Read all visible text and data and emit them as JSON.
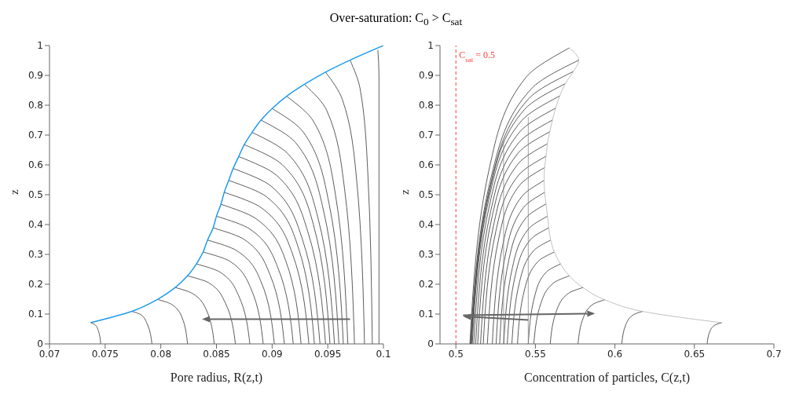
{
  "chart_data": [
    {
      "type": "line",
      "title": "Over-saturation: C$_{0}$ > C$_{sat}$",
      "xlabel": "Pore radius, R(z,t)",
      "ylabel": "z",
      "xlim": [
        0.07,
        0.1
      ],
      "ylim": [
        0,
        1
      ],
      "xticks": [
        0.07,
        0.075,
        0.08,
        0.085,
        0.09,
        0.095,
        0.1
      ],
      "yticks": [
        0,
        0.1,
        0.2,
        0.3,
        0.4,
        0.5,
        0.6,
        0.7,
        0.8,
        0.9,
        1
      ],
      "series": [
        {
          "color": "#333333",
          "x": [
            0.0746,
            0.0744,
            0.0741,
            0.0737
          ],
          "values": [
            0,
            0.043,
            0.064,
            0.071
          ]
        },
        {
          "color": "#333333",
          "x": [
            0.0792,
            0.0788,
            0.0782,
            0.0774
          ],
          "values": [
            0,
            0.065,
            0.098,
            0.109
          ]
        },
        {
          "color": "#333333",
          "x": [
            0.0824,
            0.0819,
            0.0809,
            0.0797
          ],
          "values": [
            0,
            0.089,
            0.134,
            0.149
          ]
        },
        {
          "color": "#333333",
          "x": [
            0.0848,
            0.0841,
            0.0828,
            0.0813
          ],
          "values": [
            0,
            0.113,
            0.17,
            0.189
          ]
        },
        {
          "color": "#333333",
          "x": [
            0.0867,
            0.0858,
            0.0843,
            0.0824
          ],
          "values": [
            0,
            0.137,
            0.205,
            0.228
          ]
        },
        {
          "color": "#333333",
          "x": [
            0.088,
            0.087,
            0.0853,
            0.0832
          ],
          "values": [
            0,
            0.161,
            0.241,
            0.268
          ]
        },
        {
          "color": "#333333",
          "x": [
            0.0892,
            0.0881,
            0.0862,
            0.0838
          ],
          "values": [
            0,
            0.185,
            0.277,
            0.308
          ]
        },
        {
          "color": "#333333",
          "x": [
            0.0902,
            0.089,
            0.0868,
            0.0842
          ],
          "values": [
            0,
            0.209,
            0.313,
            0.348
          ]
        },
        {
          "color": "#333333",
          "x": [
            0.0911,
            0.0898,
            0.0875,
            0.0847
          ],
          "values": [
            0,
            0.233,
            0.35,
            0.389
          ]
        },
        {
          "color": "#333333",
          "x": [
            0.0919,
            0.0905,
            0.088,
            0.085
          ],
          "values": [
            0,
            0.257,
            0.385,
            0.428
          ]
        },
        {
          "color": "#333333",
          "x": [
            0.0926,
            0.0912,
            0.0885,
            0.0854
          ],
          "values": [
            0,
            0.281,
            0.421,
            0.468
          ]
        },
        {
          "color": "#333333",
          "x": [
            0.0933,
            0.0918,
            0.089,
            0.0857
          ],
          "values": [
            0,
            0.305,
            0.457,
            0.508
          ]
        },
        {
          "color": "#333333",
          "x": [
            0.0938,
            0.0923,
            0.0895,
            0.0861
          ],
          "values": [
            0,
            0.329,
            0.493,
            0.548
          ]
        },
        {
          "color": "#333333",
          "x": [
            0.0943,
            0.0927,
            0.0899,
            0.0865
          ],
          "values": [
            0,
            0.353,
            0.529,
            0.588
          ]
        },
        {
          "color": "#333333",
          "x": [
            0.0948,
            0.0932,
            0.0904,
            0.087
          ],
          "values": [
            0,
            0.377,
            0.565,
            0.628
          ]
        },
        {
          "color": "#333333",
          "x": [
            0.0952,
            0.0937,
            0.0909,
            0.0875
          ],
          "values": [
            0,
            0.401,
            0.601,
            0.668
          ]
        },
        {
          "color": "#333333",
          "x": [
            0.0956,
            0.0941,
            0.0914,
            0.0882
          ],
          "values": [
            0,
            0.425,
            0.638,
            0.709
          ]
        },
        {
          "color": "#333333",
          "x": [
            0.096,
            0.0946,
            0.0921,
            0.089
          ],
          "values": [
            0,
            0.45,
            0.675,
            0.75
          ]
        },
        {
          "color": "#333333",
          "x": [
            0.0964,
            0.0951,
            0.0928,
            0.09
          ],
          "values": [
            0,
            0.473,
            0.71,
            0.789
          ]
        },
        {
          "color": "#333333",
          "x": [
            0.0968,
            0.0957,
            0.0937,
            0.0913
          ],
          "values": [
            0,
            0.498,
            0.747,
            0.83
          ]
        },
        {
          "color": "#333333",
          "x": [
            0.0974,
            0.0965,
            0.0949,
            0.0929
          ],
          "values": [
            0,
            0.522,
            0.783,
            0.87
          ]
        },
        {
          "color": "#333333",
          "x": [
            0.0983,
            0.0976,
            0.0963,
            0.0948
          ],
          "values": [
            0,
            0.547,
            0.82,
            0.911
          ]
        },
        {
          "color": "#333333",
          "x": [
            0.099,
            0.0986,
            0.0979,
            0.097
          ],
          "values": [
            0,
            0.571,
            0.856,
            0.951
          ]
        },
        {
          "color": "#333333",
          "x": [
            0.0996,
            0.0996,
            0.0996,
            0.0995
          ],
          "values": [
            0,
            0.6,
            0.9,
            0.985
          ]
        },
        {
          "color": "#1e9bf0",
          "x": [
            0.0737,
            0.0774,
            0.0797,
            0.0813,
            0.0824,
            0.0832,
            0.0838,
            0.0842,
            0.0847,
            0.085,
            0.0854,
            0.0857,
            0.0861,
            0.0865,
            0.087,
            0.0875,
            0.0882,
            0.089,
            0.09,
            0.0913,
            0.0929,
            0.0948,
            0.097,
            0.1
          ],
          "values": [
            0.071,
            0.109,
            0.149,
            0.189,
            0.228,
            0.268,
            0.308,
            0.348,
            0.389,
            0.428,
            0.468,
            0.508,
            0.548,
            0.588,
            0.628,
            0.668,
            0.709,
            0.75,
            0.789,
            0.83,
            0.87,
            0.911,
            0.951,
            1
          ]
        }
      ]
    },
    {
      "type": "line",
      "xlabel": "Concentration of particles, C(z,t)",
      "ylabel": "z",
      "xlim": [
        0.49,
        0.7
      ],
      "ylim": [
        0,
        1
      ],
      "xticks": [
        0.5,
        0.55,
        0.6,
        0.65,
        0.7
      ],
      "yticks": [
        0,
        0.1,
        0.2,
        0.3,
        0.4,
        0.5,
        0.6,
        0.7,
        0.8,
        0.9,
        1
      ],
      "ref_lines": [
        {
          "axis": "x",
          "value": 0.5,
          "label": "C$_{sat}$ = 0.5",
          "color": "#ff4040",
          "line_style": "dashed"
        }
      ],
      "series": [
        {
          "color": "#333333",
          "x": [
            0.658,
            0.6598,
            0.6632,
            0.6672
          ],
          "values": [
            0,
            0.043,
            0.064,
            0.071
          ]
        },
        {
          "color": "#333333",
          "x": [
            0.6043,
            0.6069,
            0.6117,
            0.6174
          ],
          "values": [
            0,
            0.065,
            0.098,
            0.109
          ]
        },
        {
          "color": "#333333",
          "x": [
            0.5768,
            0.5802,
            0.5863,
            0.5936
          ],
          "values": [
            0,
            0.089,
            0.133,
            0.148
          ]
        },
        {
          "color": "#333333",
          "x": [
            0.5593,
            0.5634,
            0.5709,
            0.5799
          ],
          "values": [
            0,
            0.113,
            0.17,
            0.189
          ]
        },
        {
          "color": "#333333",
          "x": [
            0.549,
            0.5535,
            0.5616,
            0.5713
          ],
          "values": [
            0,
            0.137,
            0.205,
            0.228
          ]
        },
        {
          "color": "#333333",
          "x": [
            0.5455,
            0.5496,
            0.5569,
            0.5658
          ],
          "values": [
            0,
            0.161,
            0.241,
            0.268
          ]
        },
        {
          "color": "#333333",
          "x": [
            0.5387,
            0.5433,
            0.5518,
            0.5619
          ],
          "values": [
            0,
            0.185,
            0.277,
            0.308
          ]
        },
        {
          "color": "#333333",
          "x": [
            0.5352,
            0.5401,
            0.549,
            0.5596
          ],
          "values": [
            0,
            0.209,
            0.313,
            0.348
          ]
        },
        {
          "color": "#333333",
          "x": [
            0.5323,
            0.5375,
            0.547,
            0.5584
          ],
          "values": [
            0,
            0.233,
            0.35,
            0.389
          ]
        },
        {
          "color": "#333333",
          "x": [
            0.5301,
            0.5356,
            0.5456,
            0.5576
          ],
          "values": [
            0,
            0.257,
            0.385,
            0.428
          ]
        },
        {
          "color": "#333333",
          "x": [
            0.5275,
            0.5333,
            0.544,
            0.5567
          ],
          "values": [
            0,
            0.281,
            0.422,
            0.469
          ]
        },
        {
          "color": "#333333",
          "x": [
            0.5253,
            0.5314,
            0.5425,
            0.5558
          ],
          "values": [
            0,
            0.305,
            0.457,
            0.508
          ]
        },
        {
          "color": "#333333",
          "x": [
            0.5229,
            0.5294,
            0.5413,
            0.5555
          ],
          "values": [
            0,
            0.329,
            0.493,
            0.548
          ]
        },
        {
          "color": "#333333",
          "x": [
            0.5198,
            0.527,
            0.5401,
            0.5558
          ],
          "values": [
            0,
            0.355,
            0.532,
            0.591
          ]
        },
        {
          "color": "#333333",
          "x": [
            0.5172,
            0.5251,
            0.5395,
            0.5567
          ],
          "values": [
            0,
            0.377,
            0.566,
            0.629
          ]
        },
        {
          "color": "#333333",
          "x": [
            0.5155,
            0.5239,
            0.5392,
            0.5576
          ],
          "values": [
            0,
            0.403,
            0.604,
            0.671
          ]
        },
        {
          "color": "#333333",
          "x": [
            0.5137,
            0.5228,
            0.5392,
            0.559
          ],
          "values": [
            0,
            0.427,
            0.64,
            0.711
          ]
        },
        {
          "color": "#333333",
          "x": [
            0.5124,
            0.5221,
            0.5396,
            0.5607
          ],
          "values": [
            0,
            0.45,
            0.675,
            0.75
          ]
        },
        {
          "color": "#333333",
          "x": [
            0.5112,
            0.5215,
            0.5402,
            0.5627
          ],
          "values": [
            0,
            0.474,
            0.711,
            0.79
          ]
        },
        {
          "color": "#333333",
          "x": [
            0.5103,
            0.5213,
            0.5413,
            0.5653
          ],
          "values": [
            0,
            0.499,
            0.748,
            0.831
          ]
        },
        {
          "color": "#333333",
          "x": [
            0.5098,
            0.5216,
            0.543,
            0.5687
          ],
          "values": [
            0,
            0.523,
            0.785,
            0.872
          ]
        },
        {
          "color": "#333333",
          "x": [
            0.5095,
            0.5224,
            0.5458,
            0.5739
          ],
          "values": [
            0,
            0.548,
            0.822,
            0.913
          ]
        },
        {
          "color": "#333333",
          "x": [
            0.5091,
            0.5227,
            0.5476,
            0.5773
          ],
          "values": [
            0,
            0.571,
            0.856,
            0.951
          ]
        },
        {
          "color": "#333333",
          "x": [
            0.5088,
            0.5213,
            0.544,
            0.5713
          ],
          "values": [
            0,
            0.595,
            0.893,
            0.992
          ]
        },
        {
          "color": "#888888",
          "x": [
            0.5455,
            0.5455
          ],
          "values": [
            0,
            0.76
          ]
        },
        {
          "color": "#888888",
          "x": [
            0.53,
            0.53
          ],
          "values": [
            0,
            0.68
          ]
        },
        {
          "color": "#b0b0b0",
          "x": [
            0.6672,
            0.6174,
            0.5936,
            0.5799,
            0.5713,
            0.5658,
            0.5619,
            0.5596,
            0.5584,
            0.5576,
            0.5567,
            0.5558,
            0.5555,
            0.5558,
            0.5567,
            0.5576,
            0.559,
            0.5607,
            0.5627,
            0.5653,
            0.5687,
            0.5739,
            0.5773,
            0.5713
          ],
          "values": [
            0.071,
            0.109,
            0.148,
            0.189,
            0.228,
            0.268,
            0.308,
            0.348,
            0.389,
            0.428,
            0.469,
            0.508,
            0.548,
            0.591,
            0.629,
            0.671,
            0.711,
            0.75,
            0.79,
            0.831,
            0.872,
            0.913,
            0.951,
            0.992
          ]
        }
      ]
    }
  ]
}
